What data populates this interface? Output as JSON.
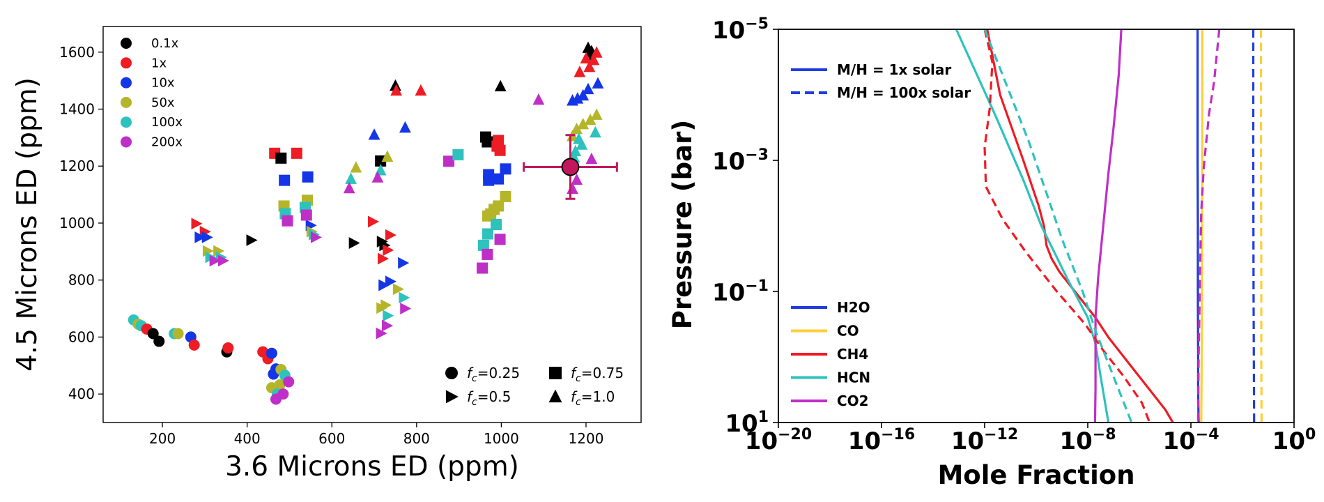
{
  "chart_data": [
    {
      "type": "scatter",
      "xlabel": "3.6 Microns ED (ppm)",
      "ylabel": "4.5 Microns ED (ppm)",
      "xlim": [
        60,
        1330
      ],
      "ylim": [
        300,
        1690
      ],
      "xticks": [
        200,
        400,
        600,
        800,
        1000,
        1200
      ],
      "yticks": [
        400,
        600,
        800,
        1000,
        1200,
        1400,
        1600
      ],
      "color_legend": [
        {
          "label": "0.1x",
          "color": "#000000"
        },
        {
          "label": "1x",
          "color": "#ee1c24"
        },
        {
          "label": "10x",
          "color": "#1436e6"
        },
        {
          "label": "50x",
          "color": "#b5b52a"
        },
        {
          "label": "100x",
          "color": "#2ec2bd"
        },
        {
          "label": "200x",
          "color": "#c02ec8"
        }
      ],
      "shape_legend": [
        {
          "shape": "circle",
          "label": "=0.25"
        },
        {
          "shape": "triangle-right",
          "label": "=0.5"
        },
        {
          "shape": "square",
          "label": "=0.75"
        },
        {
          "shape": "triangle-up",
          "label": "=1.0"
        }
      ],
      "shape_legend_symbol": "f",
      "shape_legend_subscript": "c",
      "observation": {
        "x": 1163,
        "y": 1197,
        "xerr": 110,
        "yerr": 112,
        "color": "#c2185b"
      },
      "points": [
        {
          "x": 132,
          "y": 660,
          "c": 4,
          "s": 0
        },
        {
          "x": 143,
          "y": 645,
          "c": 3,
          "s": 0
        },
        {
          "x": 150,
          "y": 640,
          "c": 4,
          "s": 0
        },
        {
          "x": 163,
          "y": 628,
          "c": 1,
          "s": 0
        },
        {
          "x": 178,
          "y": 612,
          "c": 0,
          "s": 0
        },
        {
          "x": 192,
          "y": 585,
          "c": 0,
          "s": 0
        },
        {
          "x": 228,
          "y": 612,
          "c": 4,
          "s": 0
        },
        {
          "x": 237,
          "y": 612,
          "c": 3,
          "s": 0
        },
        {
          "x": 267,
          "y": 600,
          "c": 2,
          "s": 0
        },
        {
          "x": 275,
          "y": 572,
          "c": 1,
          "s": 0
        },
        {
          "x": 352,
          "y": 548,
          "c": 0,
          "s": 0
        },
        {
          "x": 355,
          "y": 562,
          "c": 1,
          "s": 0
        },
        {
          "x": 437,
          "y": 548,
          "c": 1,
          "s": 0
        },
        {
          "x": 449,
          "y": 524,
          "c": 1,
          "s": 0
        },
        {
          "x": 458,
          "y": 543,
          "c": 2,
          "s": 0
        },
        {
          "x": 462,
          "y": 470,
          "c": 2,
          "s": 0
        },
        {
          "x": 468,
          "y": 488,
          "c": 2,
          "s": 0
        },
        {
          "x": 458,
          "y": 422,
          "c": 3,
          "s": 0
        },
        {
          "x": 480,
          "y": 486,
          "c": 3,
          "s": 0
        },
        {
          "x": 477,
          "y": 432,
          "c": 3,
          "s": 0
        },
        {
          "x": 489,
          "y": 466,
          "c": 4,
          "s": 0
        },
        {
          "x": 471,
          "y": 400,
          "c": 4,
          "s": 0
        },
        {
          "x": 498,
          "y": 443,
          "c": 5,
          "s": 0
        },
        {
          "x": 485,
          "y": 400,
          "c": 5,
          "s": 0
        },
        {
          "x": 468,
          "y": 382,
          "c": 5,
          "s": 0
        },
        {
          "x": 280,
          "y": 998,
          "c": 1,
          "s": 1
        },
        {
          "x": 300,
          "y": 970,
          "c": 1,
          "s": 1
        },
        {
          "x": 288,
          "y": 950,
          "c": 2,
          "s": 1
        },
        {
          "x": 305,
          "y": 950,
          "c": 2,
          "s": 1
        },
        {
          "x": 307,
          "y": 902,
          "c": 3,
          "s": 1
        },
        {
          "x": 332,
          "y": 902,
          "c": 3,
          "s": 1
        },
        {
          "x": 313,
          "y": 880,
          "c": 4,
          "s": 1
        },
        {
          "x": 338,
          "y": 880,
          "c": 4,
          "s": 1
        },
        {
          "x": 323,
          "y": 868,
          "c": 5,
          "s": 1
        },
        {
          "x": 343,
          "y": 868,
          "c": 5,
          "s": 1
        },
        {
          "x": 410,
          "y": 940,
          "c": 0,
          "s": 1
        },
        {
          "x": 550,
          "y": 992,
          "c": 2,
          "s": 1
        },
        {
          "x": 552,
          "y": 970,
          "c": 3,
          "s": 1
        },
        {
          "x": 557,
          "y": 960,
          "c": 4,
          "s": 1
        },
        {
          "x": 562,
          "y": 950,
          "c": 5,
          "s": 1
        },
        {
          "x": 652,
          "y": 930,
          "c": 0,
          "s": 1
        },
        {
          "x": 697,
          "y": 1005,
          "c": 1,
          "s": 1
        },
        {
          "x": 718,
          "y": 935,
          "c": 0,
          "s": 1
        },
        {
          "x": 724,
          "y": 922,
          "c": 0,
          "s": 1
        },
        {
          "x": 738,
          "y": 958,
          "c": 1,
          "s": 1
        },
        {
          "x": 732,
          "y": 905,
          "c": 1,
          "s": 1
        },
        {
          "x": 720,
          "y": 875,
          "c": 1,
          "s": 1
        },
        {
          "x": 768,
          "y": 860,
          "c": 2,
          "s": 1
        },
        {
          "x": 738,
          "y": 795,
          "c": 2,
          "s": 1
        },
        {
          "x": 722,
          "y": 782,
          "c": 2,
          "s": 1
        },
        {
          "x": 756,
          "y": 768,
          "c": 3,
          "s": 1
        },
        {
          "x": 727,
          "y": 712,
          "c": 3,
          "s": 1
        },
        {
          "x": 717,
          "y": 702,
          "c": 3,
          "s": 1
        },
        {
          "x": 770,
          "y": 738,
          "c": 4,
          "s": 1
        },
        {
          "x": 732,
          "y": 675,
          "c": 4,
          "s": 1
        },
        {
          "x": 773,
          "y": 700,
          "c": 5,
          "s": 1
        },
        {
          "x": 730,
          "y": 640,
          "c": 5,
          "s": 1
        },
        {
          "x": 716,
          "y": 613,
          "c": 5,
          "s": 1
        },
        {
          "x": 465,
          "y": 1245,
          "c": 1,
          "s": 2
        },
        {
          "x": 517,
          "y": 1245,
          "c": 1,
          "s": 2
        },
        {
          "x": 480,
          "y": 1228,
          "c": 0,
          "s": 2
        },
        {
          "x": 488,
          "y": 1150,
          "c": 2,
          "s": 2
        },
        {
          "x": 543,
          "y": 1162,
          "c": 2,
          "s": 2
        },
        {
          "x": 487,
          "y": 1060,
          "c": 3,
          "s": 2
        },
        {
          "x": 542,
          "y": 1080,
          "c": 3,
          "s": 2
        },
        {
          "x": 490,
          "y": 1033,
          "c": 4,
          "s": 2
        },
        {
          "x": 537,
          "y": 1055,
          "c": 4,
          "s": 2
        },
        {
          "x": 495,
          "y": 1008,
          "c": 5,
          "s": 2
        },
        {
          "x": 540,
          "y": 1028,
          "c": 5,
          "s": 2
        },
        {
          "x": 715,
          "y": 1218,
          "c": 0,
          "s": 2
        },
        {
          "x": 876,
          "y": 1217,
          "c": 5,
          "s": 2
        },
        {
          "x": 898,
          "y": 1240,
          "c": 4,
          "s": 2
        },
        {
          "x": 963,
          "y": 1302,
          "c": 0,
          "s": 2
        },
        {
          "x": 967,
          "y": 1285,
          "c": 0,
          "s": 2
        },
        {
          "x": 993,
          "y": 1290,
          "c": 1,
          "s": 2
        },
        {
          "x": 990,
          "y": 1270,
          "c": 1,
          "s": 2
        },
        {
          "x": 997,
          "y": 1255,
          "c": 1,
          "s": 2
        },
        {
          "x": 970,
          "y": 1170,
          "c": 2,
          "s": 2
        },
        {
          "x": 970,
          "y": 1150,
          "c": 2,
          "s": 2
        },
        {
          "x": 993,
          "y": 1155,
          "c": 2,
          "s": 2
        },
        {
          "x": 1010,
          "y": 1190,
          "c": 2,
          "s": 2
        },
        {
          "x": 983,
          "y": 1048,
          "c": 3,
          "s": 2
        },
        {
          "x": 968,
          "y": 1025,
          "c": 3,
          "s": 2
        },
        {
          "x": 975,
          "y": 1032,
          "c": 3,
          "s": 2
        },
        {
          "x": 1010,
          "y": 1093,
          "c": 3,
          "s": 2
        },
        {
          "x": 993,
          "y": 1060,
          "c": 3,
          "s": 2
        },
        {
          "x": 968,
          "y": 962,
          "c": 4,
          "s": 2
        },
        {
          "x": 988,
          "y": 995,
          "c": 4,
          "s": 2
        },
        {
          "x": 958,
          "y": 922,
          "c": 4,
          "s": 2
        },
        {
          "x": 997,
          "y": 943,
          "c": 5,
          "s": 2
        },
        {
          "x": 967,
          "y": 890,
          "c": 5,
          "s": 2
        },
        {
          "x": 955,
          "y": 842,
          "c": 5,
          "s": 2
        },
        {
          "x": 750,
          "y": 1482,
          "c": 0,
          "s": 3
        },
        {
          "x": 752,
          "y": 1465,
          "c": 1,
          "s": 3
        },
        {
          "x": 810,
          "y": 1465,
          "c": 1,
          "s": 3
        },
        {
          "x": 998,
          "y": 1480,
          "c": 0,
          "s": 3
        },
        {
          "x": 700,
          "y": 1310,
          "c": 2,
          "s": 3
        },
        {
          "x": 773,
          "y": 1335,
          "c": 2,
          "s": 3
        },
        {
          "x": 657,
          "y": 1195,
          "c": 3,
          "s": 3
        },
        {
          "x": 731,
          "y": 1233,
          "c": 3,
          "s": 3
        },
        {
          "x": 645,
          "y": 1155,
          "c": 4,
          "s": 3
        },
        {
          "x": 715,
          "y": 1185,
          "c": 4,
          "s": 3
        },
        {
          "x": 641,
          "y": 1122,
          "c": 5,
          "s": 3
        },
        {
          "x": 708,
          "y": 1160,
          "c": 5,
          "s": 3
        },
        {
          "x": 1088,
          "y": 1433,
          "c": 5,
          "s": 3
        },
        {
          "x": 1205,
          "y": 1615,
          "c": 0,
          "s": 3
        },
        {
          "x": 1213,
          "y": 1603,
          "c": 0,
          "s": 3
        },
        {
          "x": 1208,
          "y": 1590,
          "c": 0,
          "s": 3
        },
        {
          "x": 1225,
          "y": 1598,
          "c": 1,
          "s": 3
        },
        {
          "x": 1218,
          "y": 1572,
          "c": 1,
          "s": 3
        },
        {
          "x": 1200,
          "y": 1578,
          "c": 1,
          "s": 3
        },
        {
          "x": 1185,
          "y": 1530,
          "c": 1,
          "s": 3
        },
        {
          "x": 1208,
          "y": 1548,
          "c": 1,
          "s": 3
        },
        {
          "x": 1228,
          "y": 1490,
          "c": 2,
          "s": 3
        },
        {
          "x": 1205,
          "y": 1470,
          "c": 2,
          "s": 3
        },
        {
          "x": 1193,
          "y": 1448,
          "c": 2,
          "s": 3
        },
        {
          "x": 1180,
          "y": 1437,
          "c": 2,
          "s": 3
        },
        {
          "x": 1168,
          "y": 1430,
          "c": 2,
          "s": 3
        },
        {
          "x": 1225,
          "y": 1380,
          "c": 3,
          "s": 3
        },
        {
          "x": 1210,
          "y": 1362,
          "c": 3,
          "s": 3
        },
        {
          "x": 1193,
          "y": 1347,
          "c": 3,
          "s": 3
        },
        {
          "x": 1178,
          "y": 1330,
          "c": 3,
          "s": 3
        },
        {
          "x": 1168,
          "y": 1305,
          "c": 3,
          "s": 3
        },
        {
          "x": 1222,
          "y": 1318,
          "c": 4,
          "s": 3
        },
        {
          "x": 1190,
          "y": 1275,
          "c": 4,
          "s": 3
        },
        {
          "x": 1183,
          "y": 1295,
          "c": 4,
          "s": 3
        },
        {
          "x": 1175,
          "y": 1252,
          "c": 4,
          "s": 3
        },
        {
          "x": 1172,
          "y": 1230,
          "c": 4,
          "s": 3
        },
        {
          "x": 1213,
          "y": 1225,
          "c": 5,
          "s": 3
        },
        {
          "x": 1178,
          "y": 1152,
          "c": 5,
          "s": 3
        },
        {
          "x": 1168,
          "y": 1120,
          "c": 5,
          "s": 3
        }
      ]
    },
    {
      "type": "line",
      "xscale": "log",
      "yscale": "log",
      "xlabel": "Mole Fraction",
      "ylabel": "Pressure (bar)",
      "xlim_exp": [
        -20,
        0
      ],
      "ylim_exp": [
        -5,
        1
      ],
      "xtick_exps": [
        -20,
        -16,
        -12,
        -8,
        -4,
        0
      ],
      "ytick_exps": [
        -5,
        -3,
        -1,
        1
      ],
      "tick_base": "10",
      "style_legend": [
        {
          "label": "M/H = 1x solar",
          "dash": "solid"
        },
        {
          "label": "M/H = 100x solar",
          "dash": "dashed"
        }
      ],
      "style_legend_color": "#1f3de0",
      "species_legend": [
        {
          "label": "H2O",
          "color": "#1f3de0"
        },
        {
          "label": "CO",
          "color": "#ffcf3a"
        },
        {
          "label": "CH4",
          "color": "#ee1c24"
        },
        {
          "label": "HCN",
          "color": "#2ec2bd"
        },
        {
          "label": "CO2",
          "color": "#c02ec8"
        }
      ],
      "series": [
        {
          "name": "H2O",
          "style": "solid",
          "log_x": [
            -3.74,
            -3.74,
            -3.73,
            -3.73,
            -3.72,
            -3.72,
            -3.7
          ],
          "log_p": [
            -5,
            -3,
            -2,
            -1,
            0,
            0.5,
            1
          ]
        },
        {
          "name": "CO",
          "style": "solid",
          "log_x": [
            -3.56,
            -3.56,
            -3.57,
            -3.58,
            -3.59,
            -3.6
          ],
          "log_p": [
            -5,
            -3,
            -1,
            0,
            0.5,
            1
          ]
        },
        {
          "name": "CH4",
          "style": "solid",
          "log_x": [
            -11.9,
            -11.4,
            -10.5,
            -9.9,
            -9.7,
            -9.6,
            -9.4,
            -9.1,
            -8.5,
            -7.7,
            -7.2,
            -6.0,
            -5.0,
            -4.7
          ],
          "log_p": [
            -5,
            -4,
            -3,
            -2.3,
            -2,
            -1.7,
            -1.5,
            -1.3,
            -1.0,
            -0.6,
            -0.3,
            0.3,
            0.8,
            1
          ]
        },
        {
          "name": "HCN",
          "style": "solid",
          "log_x": [
            -13.1,
            -11.6,
            -10.5,
            -9.8,
            -8.8,
            -8.0,
            -7.7,
            -7.5,
            -7.2
          ],
          "log_p": [
            -5,
            -3.7,
            -2.7,
            -2.0,
            -1.2,
            -0.6,
            -0.2,
            0.3,
            1
          ]
        },
        {
          "name": "CO2",
          "style": "solid",
          "log_x": [
            -6.7,
            -6.8,
            -7.0,
            -7.2,
            -7.4,
            -7.6,
            -7.7,
            -7.7,
            -7.7,
            -7.72
          ],
          "log_p": [
            -5,
            -4.3,
            -3.5,
            -2.8,
            -2.0,
            -1.2,
            -0.6,
            0,
            0.5,
            1
          ]
        },
        {
          "name": "H2O",
          "style": "dashed",
          "log_x": [
            -1.58,
            -1.58,
            -1.57,
            -1.56,
            -1.55
          ],
          "log_p": [
            -5,
            -3,
            -1,
            0,
            1
          ]
        },
        {
          "name": "CO",
          "style": "dashed",
          "log_x": [
            -1.28,
            -1.28,
            -1.27,
            -1.27,
            -1.26
          ],
          "log_p": [
            -5,
            -3,
            -1,
            0,
            1
          ]
        },
        {
          "name": "CH4",
          "style": "dashed",
          "log_x": [
            -12.0,
            -11.7,
            -11.8,
            -12.0,
            -11.95,
            -11.3,
            -10.4,
            -9.2,
            -8.1,
            -7.4,
            -6.6,
            -5.9,
            -5.6
          ],
          "log_p": [
            -5,
            -4.5,
            -3.8,
            -3.2,
            -2.6,
            -2.1,
            -1.6,
            -1.0,
            -0.5,
            -0.1,
            0.3,
            0.7,
            1
          ]
        },
        {
          "name": "HCN",
          "style": "dashed",
          "log_x": [
            -12.0,
            -11.0,
            -10.3,
            -9.6,
            -9.0,
            -8.2,
            -7.7,
            -7.2,
            -6.8,
            -6.3
          ],
          "log_p": [
            -5,
            -4.0,
            -3.3,
            -2.5,
            -1.8,
            -1.0,
            -0.4,
            0.1,
            0.5,
            1
          ]
        },
        {
          "name": "CO2",
          "style": "dashed",
          "log_x": [
            -2.9,
            -3.0,
            -3.1,
            -3.3,
            -3.4,
            -3.5,
            -3.6,
            -3.65,
            -3.7,
            -3.72
          ],
          "log_p": [
            -5,
            -4.6,
            -4.2,
            -3.7,
            -3.3,
            -2.9,
            -2.2,
            -1.2,
            0,
            1
          ]
        }
      ]
    }
  ]
}
